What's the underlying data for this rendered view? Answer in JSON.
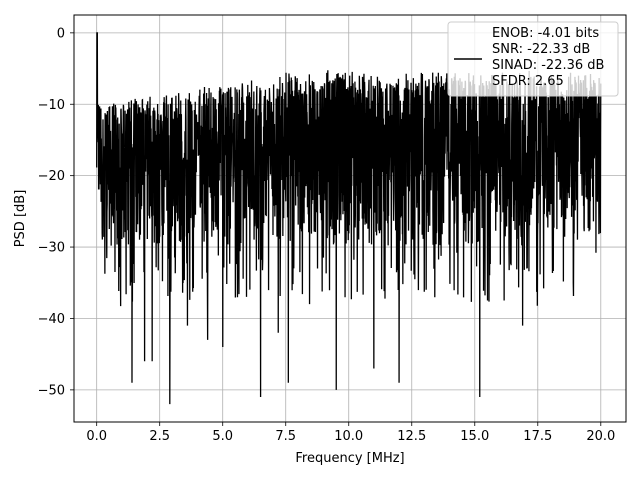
{
  "chart_data": {
    "type": "line",
    "title": "",
    "xlabel": "Frequency [MHz]",
    "ylabel": "PSD [dB]",
    "xlim": [
      -0.9,
      21.0
    ],
    "ylim": [
      -54.5,
      2.5
    ],
    "xticks": [
      0.0,
      2.5,
      5.0,
      7.5,
      10.0,
      12.5,
      15.0,
      17.5,
      20.0
    ],
    "xtick_labels": [
      "0.0",
      "2.5",
      "5.0",
      "7.5",
      "10.0",
      "12.5",
      "15.0",
      "17.5",
      "20.0"
    ],
    "yticks": [
      0,
      -10,
      -20,
      -30,
      -40,
      -50
    ],
    "ytick_labels": [
      "0",
      "−10",
      "−20",
      "−30",
      "−40",
      "−50"
    ],
    "grid": true,
    "legend": {
      "placement": "upper right",
      "entries": [
        "ENOB: -4.01 bits",
        "SNR: -22.33 dB",
        "SINAD: -22.36 dB",
        "SFDR: 2.65"
      ]
    },
    "series": [
      {
        "color": "#000000",
        "noise_floor_db": -20,
        "upper_envelope_db": [
          -10,
          -5
        ],
        "lower_envelope_db": [
          -30,
          -36
        ],
        "peak": {
          "x": 0.02,
          "y": 0.0
        },
        "x_range": [
          0.0,
          20.0
        ],
        "notable_dips": [
          {
            "x": 1.4,
            "y": -49
          },
          {
            "x": 1.9,
            "y": -46
          },
          {
            "x": 2.2,
            "y": -46
          },
          {
            "x": 2.9,
            "y": -52
          },
          {
            "x": 3.6,
            "y": -41
          },
          {
            "x": 4.4,
            "y": -43
          },
          {
            "x": 5.0,
            "y": -44
          },
          {
            "x": 6.5,
            "y": -51
          },
          {
            "x": 7.2,
            "y": -42
          },
          {
            "x": 7.6,
            "y": -49
          },
          {
            "x": 9.5,
            "y": -50
          },
          {
            "x": 11.0,
            "y": -47
          },
          {
            "x": 12.0,
            "y": -49
          },
          {
            "x": 15.2,
            "y": -51
          },
          {
            "x": 16.9,
            "y": -41
          }
        ]
      }
    ]
  }
}
